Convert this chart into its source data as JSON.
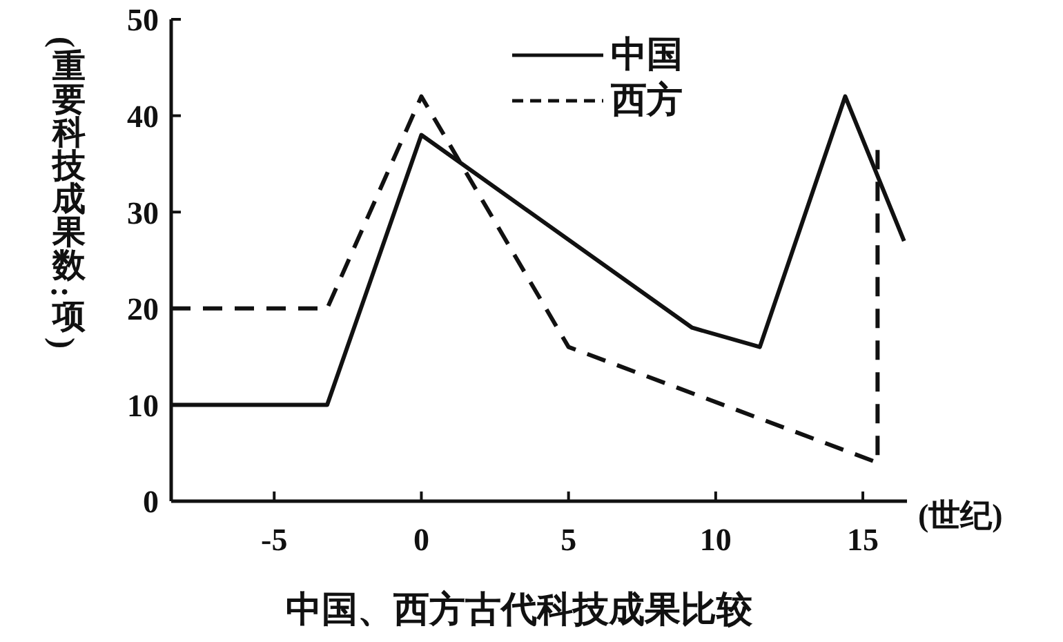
{
  "chart_data": {
    "type": "line",
    "title": "中国、西方古代科技成果比较",
    "xlabel": "(世纪)",
    "ylabel": "(重要科技成果数:项)",
    "series": [
      {
        "name": "中国",
        "color": "#111111",
        "line_style": "solid",
        "x": [
          -8.5,
          -3.2,
          0,
          9.2,
          11.5,
          14.4,
          16.4
        ],
        "values": [
          10,
          10,
          38,
          18,
          16,
          42,
          27
        ]
      },
      {
        "name": "西方",
        "color": "#111111",
        "line_style": "dashed",
        "x": [
          -8.5,
          -3.2,
          0,
          5,
          15.5,
          15.5
        ],
        "values": [
          20,
          20,
          42,
          16,
          4,
          37
        ]
      }
    ],
    "xlim": [
      -8.5,
      16.5
    ],
    "ylim": [
      0,
      50
    ],
    "xticks": [
      -5,
      0,
      5,
      10,
      15
    ],
    "yticks": [
      0,
      10,
      20,
      30,
      40,
      50
    ],
    "legend": "top",
    "marker": "none"
  }
}
